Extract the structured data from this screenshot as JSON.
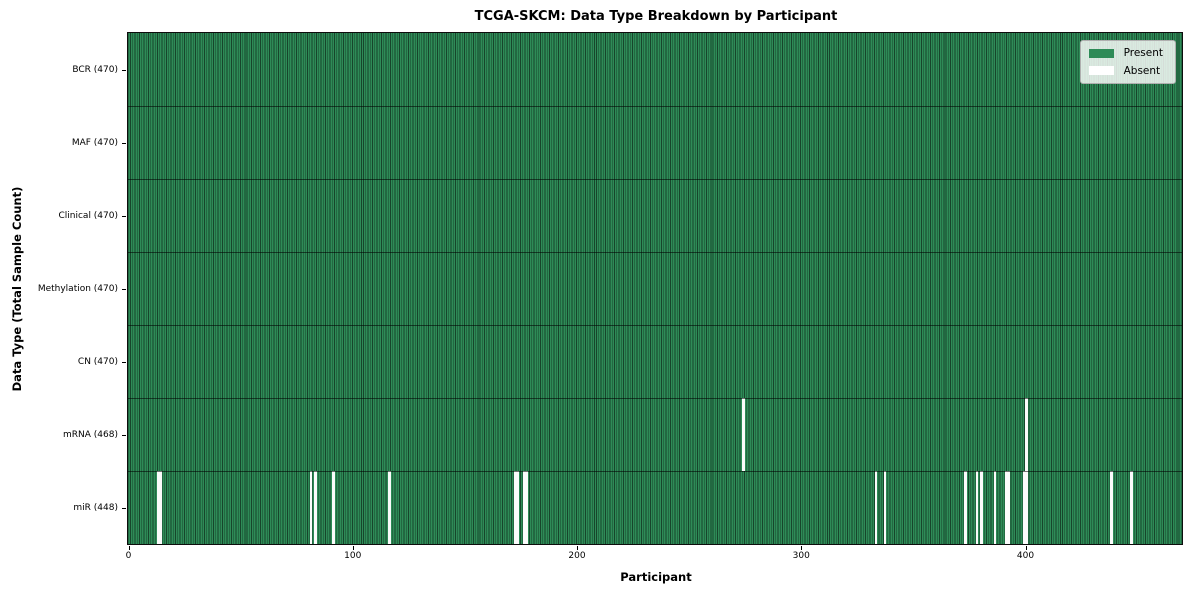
{
  "chart_data": {
    "type": "heatmap",
    "title": "TCGA-SKCM: Data Type Breakdown by Participant",
    "xlabel": "Participant",
    "ylabel": "Data Type (Total Sample Count)",
    "n_participants": 470,
    "x_ticks": [
      0,
      100,
      200,
      300,
      400
    ],
    "x_tick_labels": [
      "0",
      "100",
      "200",
      "300",
      "400"
    ],
    "legend_position": "upper right",
    "grid": false,
    "legend": [
      {
        "label": "Present",
        "color": "#2e8b57"
      },
      {
        "label": "Absent",
        "color": "#ffffff"
      }
    ],
    "colors": {
      "present": "#2e8b57",
      "absent": "#ffffff",
      "cell_edge": "rgba(0,0,0,0.5)"
    },
    "rows": [
      {
        "label": "BCR (470)",
        "data_type": "BCR",
        "present_count": 470,
        "absent_indices": []
      },
      {
        "label": "MAF (470)",
        "data_type": "MAF",
        "present_count": 470,
        "absent_indices": []
      },
      {
        "label": "Clinical (470)",
        "data_type": "Clinical",
        "present_count": 470,
        "absent_indices": []
      },
      {
        "label": "Methylation (470)",
        "data_type": "Methylation",
        "present_count": 470,
        "absent_indices": []
      },
      {
        "label": "CN (470)",
        "data_type": "CN",
        "present_count": 470,
        "absent_indices": []
      },
      {
        "label": "mRNA (468)",
        "data_type": "mRNA",
        "present_count": 468,
        "absent_indices": [
          274,
          400
        ]
      },
      {
        "label": "miR (448)",
        "data_type": "miR",
        "present_count": 448,
        "absent_indices": [
          13,
          14,
          81,
          83,
          91,
          116,
          172,
          173,
          176,
          177,
          333,
          337,
          373,
          378,
          380,
          386,
          391,
          392,
          399,
          400,
          438,
          447
        ]
      }
    ]
  }
}
